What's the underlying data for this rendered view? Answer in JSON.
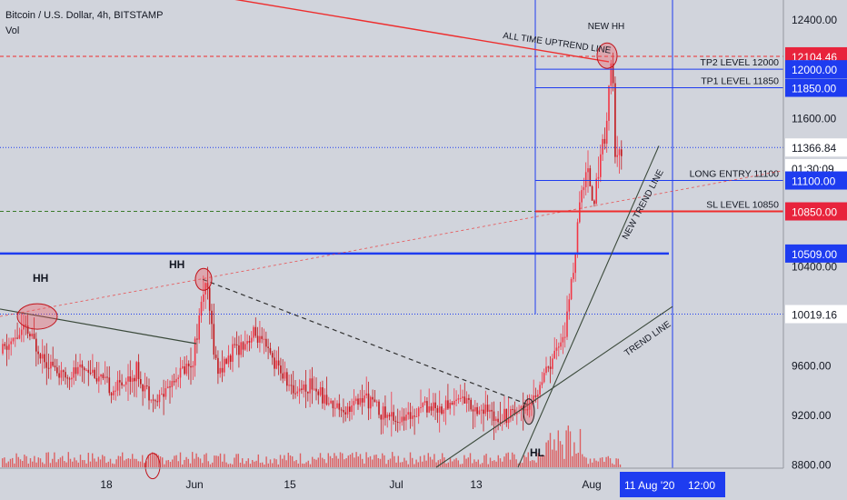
{
  "header": {
    "symbol_line": "Bitcoin / U.S. Dollar, 4h, BITSTAMP",
    "indicator": "Vol"
  },
  "colors": {
    "background": "#d1d4dc",
    "candle_up": "#f23645",
    "candle_down": "#c2181c",
    "blue_line": "#1e3cf0",
    "red_line": "#ee2d2d",
    "trend_line": "#3b4a3b",
    "volume_bar": "#e03a3a",
    "axis_text": "#131722",
    "price_tag_blue": "#1e3cf0",
    "price_tag_red": "#e8233c"
  },
  "chart_data": {
    "type": "candlestick",
    "title": "Bitcoin / U.S. Dollar, 4h, BITSTAMP",
    "ylim": [
      8780,
      12560
    ],
    "grid": false,
    "x_ticks": [
      "18",
      "Jun",
      "15",
      "Jul",
      "13",
      "Aug"
    ],
    "y_ticks": [
      12400,
      12000,
      11600,
      11200,
      10800,
      10400,
      10000,
      9600,
      9200,
      8800
    ],
    "y_tick_labels": [
      "12400.00",
      "12000.00",
      "11600.00",
      "",
      "",
      "10400.00",
      "",
      "9600.00",
      "9200.00",
      "8800.00"
    ],
    "price_tags": [
      {
        "label": "12104.46",
        "value": 12104.46,
        "style": "red"
      },
      {
        "label": "12000.00",
        "value": 12000,
        "style": "blue"
      },
      {
        "label": "11850.00",
        "value": 11850,
        "style": "blue"
      },
      {
        "label": "11366.84",
        "value": 11366.84,
        "style": "white"
      },
      {
        "label": "01:30:09",
        "value": 11200,
        "style": "white"
      },
      {
        "label": "11100.00",
        "value": 11100,
        "style": "blue"
      },
      {
        "label": "10850.00",
        "value": 10850,
        "style": "red"
      },
      {
        "label": "10509.00",
        "value": 10509,
        "style": "blue"
      },
      {
        "label": "10019.16",
        "value": 10019.16,
        "style": "white"
      }
    ],
    "level_lines": [
      {
        "label": "TP2 LEVEL 12000",
        "value": 12000
      },
      {
        "label": "TP1 LEVEL 11850",
        "value": 11850
      },
      {
        "label": "LONG ENTRY 11100",
        "value": 11100
      },
      {
        "label": "SL LEVEL 10850",
        "value": 10850
      }
    ],
    "annotations": [
      {
        "text": "HH",
        "kind": "swing_high"
      },
      {
        "text": "HH",
        "kind": "swing_high"
      },
      {
        "text": "HL",
        "kind": "swing_low"
      },
      {
        "text": "NEW HH",
        "kind": "swing_high"
      },
      {
        "text": "ALL TIME UPTREND LINE",
        "kind": "trendline_label"
      },
      {
        "text": "NEW TREND LINE",
        "kind": "trendline_label"
      },
      {
        "text": "TREND LINE",
        "kind": "trendline_label"
      }
    ],
    "date_tag": "11 Aug '20",
    "time_tag": "12:00",
    "price_path": [
      {
        "t": 0.0,
        "price": 9700
      },
      {
        "t": 0.04,
        "price": 9900
      },
      {
        "t": 0.06,
        "price": 9750
      },
      {
        "t": 0.1,
        "price": 9500
      },
      {
        "t": 0.14,
        "price": 9600
      },
      {
        "t": 0.18,
        "price": 9400
      },
      {
        "t": 0.22,
        "price": 9550
      },
      {
        "t": 0.25,
        "price": 9300
      },
      {
        "t": 0.28,
        "price": 9500
      },
      {
        "t": 0.31,
        "price": 9650
      },
      {
        "t": 0.33,
        "price": 10300
      },
      {
        "t": 0.35,
        "price": 9550
      },
      {
        "t": 0.38,
        "price": 9750
      },
      {
        "t": 0.41,
        "price": 9850
      },
      {
        "t": 0.44,
        "price": 9650
      },
      {
        "t": 0.47,
        "price": 9400
      },
      {
        "t": 0.5,
        "price": 9450
      },
      {
        "t": 0.53,
        "price": 9300
      },
      {
        "t": 0.56,
        "price": 9250
      },
      {
        "t": 0.59,
        "price": 9350
      },
      {
        "t": 0.62,
        "price": 9200
      },
      {
        "t": 0.65,
        "price": 9150
      },
      {
        "t": 0.68,
        "price": 9300
      },
      {
        "t": 0.71,
        "price": 9250
      },
      {
        "t": 0.74,
        "price": 9350
      },
      {
        "t": 0.77,
        "price": 9250
      },
      {
        "t": 0.8,
        "price": 9200
      },
      {
        "t": 0.83,
        "price": 9250
      },
      {
        "t": 0.855,
        "price": 9300
      },
      {
        "t": 0.87,
        "price": 9450
      },
      {
        "t": 0.89,
        "price": 9650
      },
      {
        "t": 0.91,
        "price": 9900
      },
      {
        "t": 0.925,
        "price": 10500
      },
      {
        "t": 0.935,
        "price": 11000
      },
      {
        "t": 0.945,
        "price": 11200
      },
      {
        "t": 0.955,
        "price": 10900
      },
      {
        "t": 0.965,
        "price": 11300
      },
      {
        "t": 0.975,
        "price": 11500
      },
      {
        "t": 0.98,
        "price": 11900
      },
      {
        "t": 0.985,
        "price": 12100
      },
      {
        "t": 0.99,
        "price": 11200
      },
      {
        "t": 1.0,
        "price": 11350
      }
    ]
  }
}
